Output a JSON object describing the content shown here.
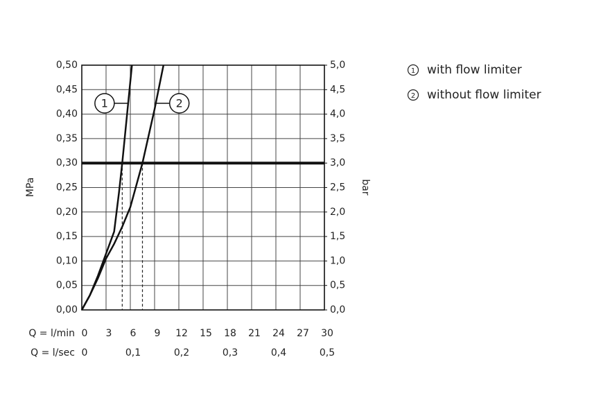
{
  "chart_data": {
    "type": "line",
    "x_label": "Q = l/min",
    "x2_label": "Q = l/sec",
    "y_label": "MPa",
    "y2_label": "bar",
    "xlim": [
      0,
      30
    ],
    "xticks": [
      0,
      3,
      6,
      9,
      12,
      15,
      18,
      21,
      24,
      27,
      30
    ],
    "x2lim": [
      0,
      0.5
    ],
    "x2ticks": [
      0,
      {
        "value": 0.1,
        "label": "0,1"
      },
      {
        "value": 0.2,
        "label": "0,2"
      },
      {
        "value": 0.3,
        "label": "0,3"
      },
      {
        "value": 0.4,
        "label": "0,4"
      },
      {
        "value": 0.5,
        "label": "0,5"
      }
    ],
    "ylim": [
      0,
      0.5
    ],
    "yticks": [
      {
        "value": 0,
        "label": "0,00"
      },
      {
        "value": 0.05,
        "label": "0,05"
      },
      {
        "value": 0.1,
        "label": "0,10"
      },
      {
        "value": 0.15,
        "label": "0,15"
      },
      {
        "value": 0.2,
        "label": "0,20"
      },
      {
        "value": 0.25,
        "label": "0,25"
      },
      {
        "value": 0.3,
        "label": "0,30"
      },
      {
        "value": 0.35,
        "label": "0,35"
      },
      {
        "value": 0.4,
        "label": "0,40"
      },
      {
        "value": 0.45,
        "label": "0,45"
      },
      {
        "value": 0.5,
        "label": "0,50"
      }
    ],
    "y2lim": [
      0,
      5
    ],
    "y2ticks": [
      {
        "value": 0,
        "label": "0,0"
      },
      {
        "value": 0.5,
        "label": "0,5"
      },
      {
        "value": 1,
        "label": "1,0"
      },
      {
        "value": 1.5,
        "label": "1,5"
      },
      {
        "value": 2,
        "label": "2,0"
      },
      {
        "value": 2.5,
        "label": "2,5"
      },
      {
        "value": 3,
        "label": "3,0"
      },
      {
        "value": 3.5,
        "label": "3,5"
      },
      {
        "value": 4,
        "label": "4,0"
      },
      {
        "value": 4.5,
        "label": "4,5"
      },
      {
        "value": 5,
        "label": "5,0"
      }
    ],
    "grid": true,
    "hline": 0.3,
    "reference_x": [
      5,
      7.5
    ],
    "series": [
      {
        "name": "with flow limiter",
        "label": "1",
        "color": "#111111",
        "x": [
          0,
          1,
          2,
          3,
          4,
          4.6,
          5,
          5.6,
          6.2
        ],
        "values": [
          0,
          0.03,
          0.07,
          0.115,
          0.16,
          0.24,
          0.3,
          0.4,
          0.5
        ]
      },
      {
        "name": "without flow limiter",
        "label": "2",
        "color": "#111111",
        "x": [
          0,
          1,
          2,
          3,
          4,
          5,
          6,
          7.5,
          9,
          10.1
        ],
        "values": [
          0,
          0.03,
          0.065,
          0.105,
          0.135,
          0.17,
          0.21,
          0.3,
          0.41,
          0.5
        ]
      }
    ]
  }
}
